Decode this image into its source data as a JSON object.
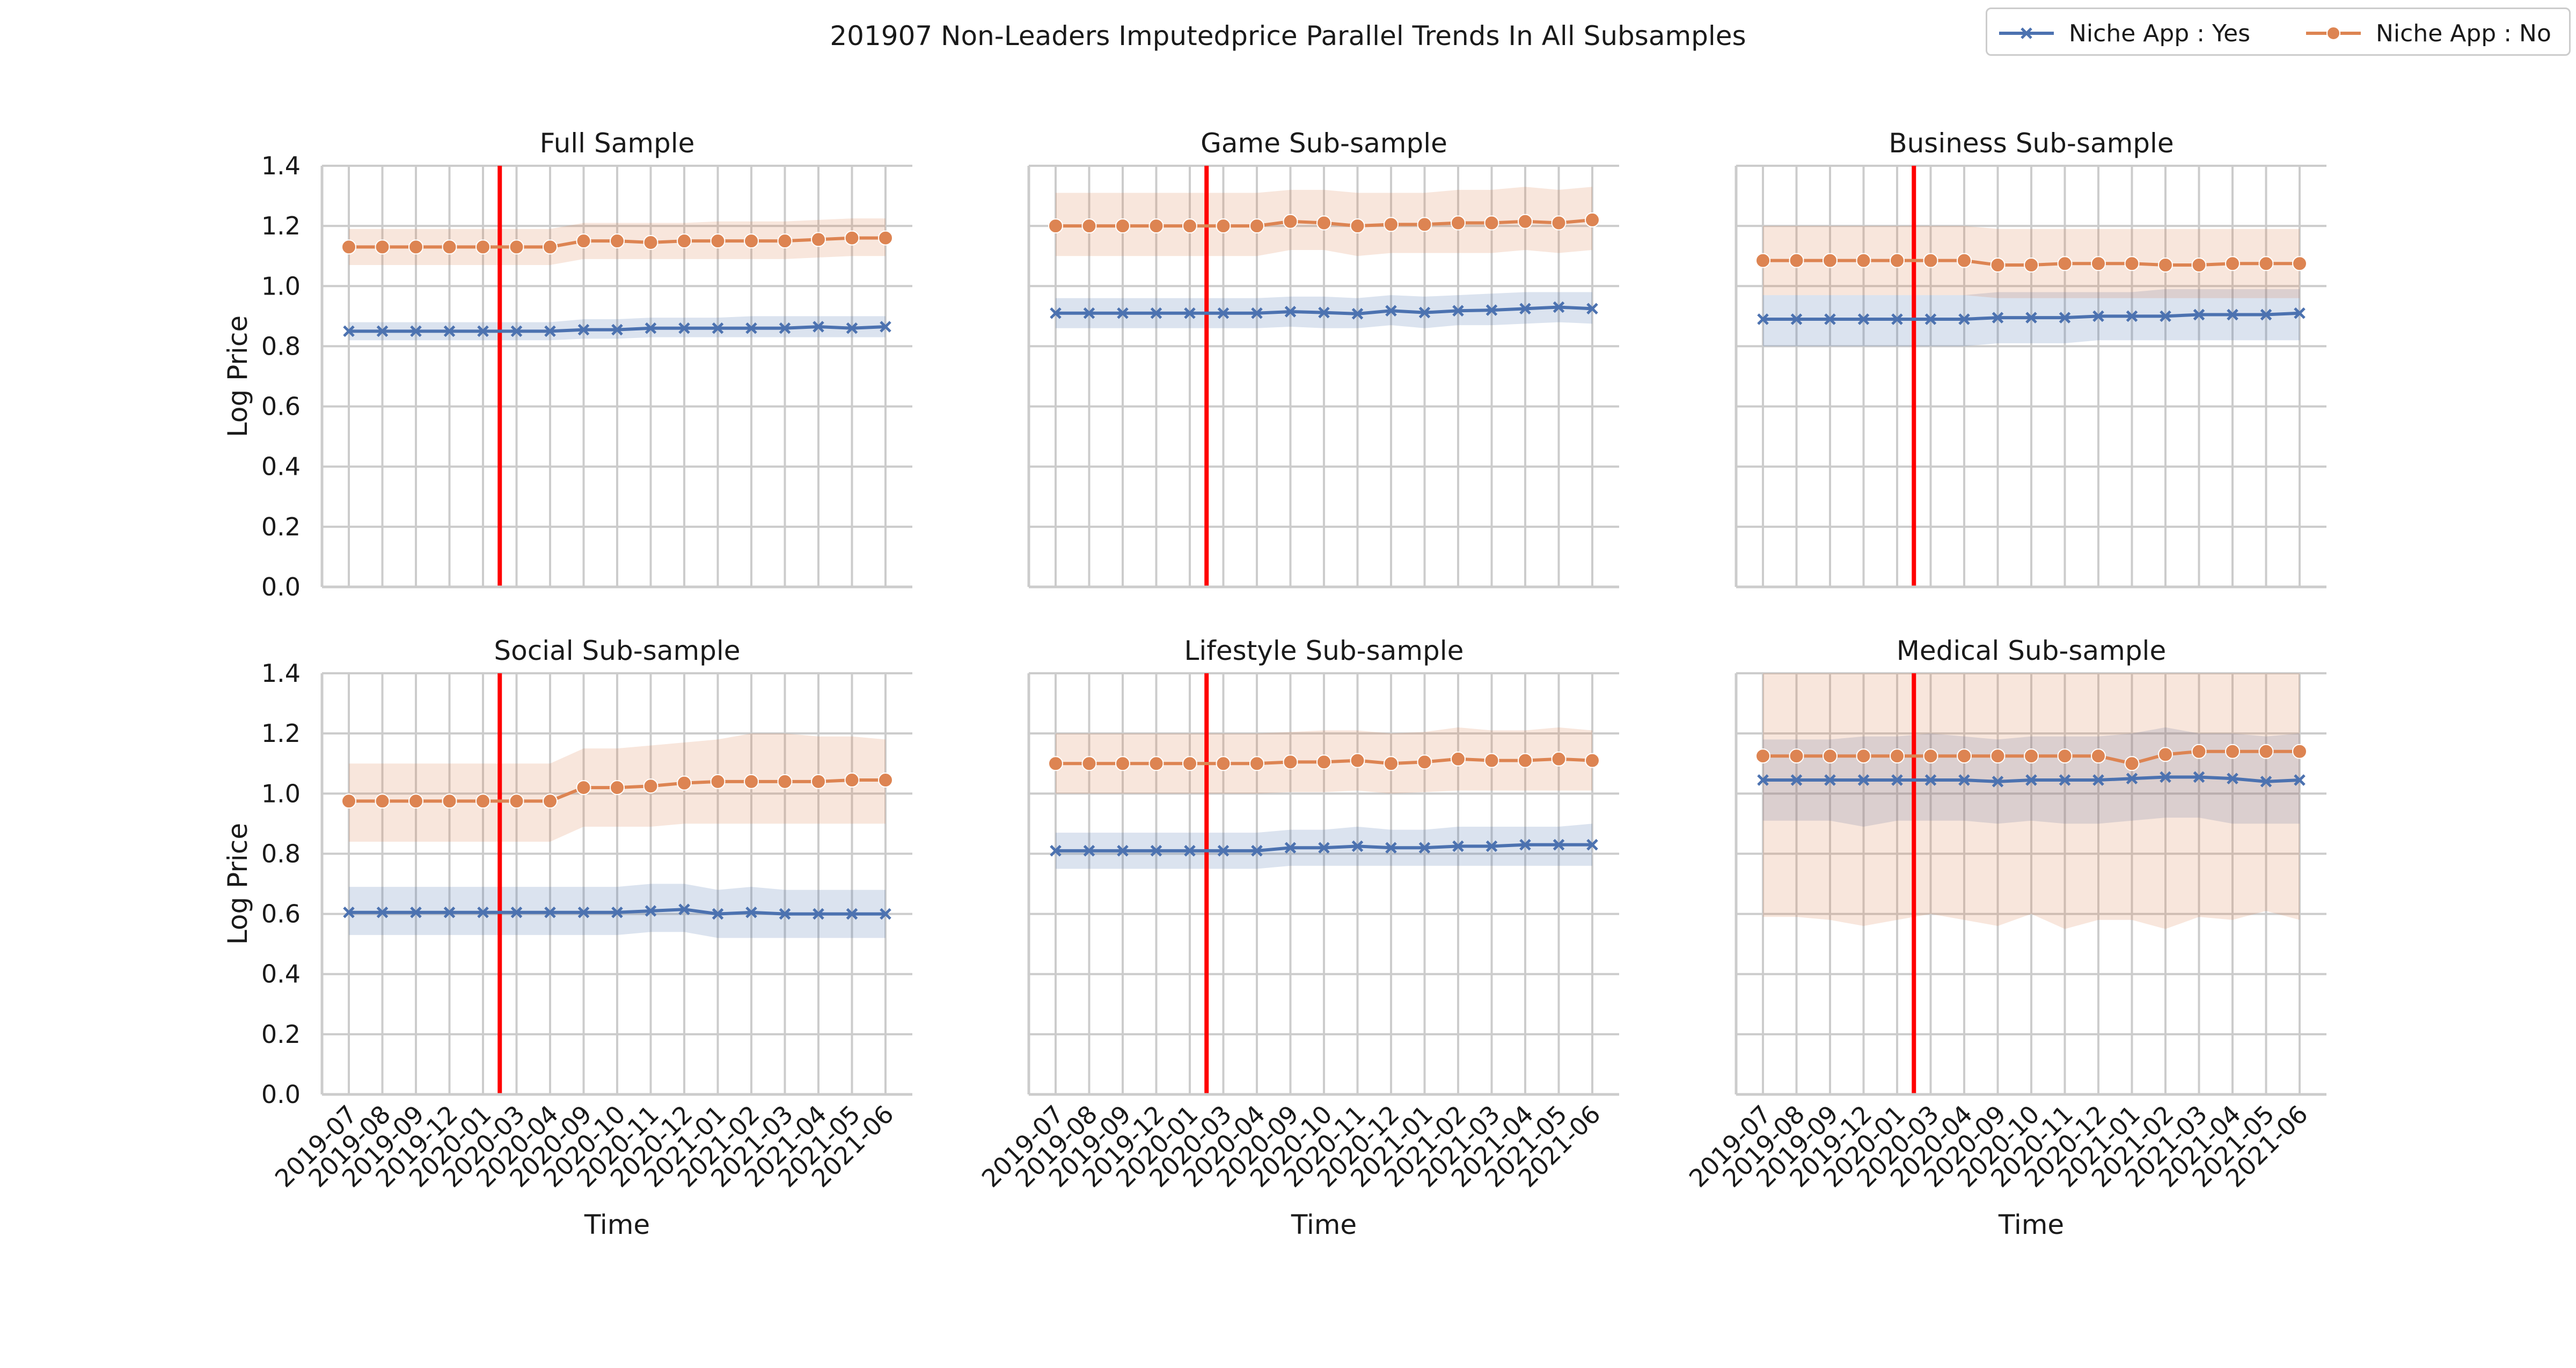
{
  "figure": {
    "title": "201907 Non-Leaders Imputedprice Parallel Trends In All Subsamples"
  },
  "legend": {
    "items": [
      {
        "label": "Niche App : Yes",
        "color": "#4c72b0",
        "marker": "x-marker-icon"
      },
      {
        "label": "Niche App : No",
        "color": "#dd8452",
        "marker": "circle-marker-icon"
      }
    ]
  },
  "colors": {
    "yes_line": "#4c72b0",
    "no_line": "#dd8452",
    "treatment_line": "#ff0000",
    "grid": "#cccccc"
  },
  "chart_data": [
    {
      "type": "line",
      "title": "Full Sample",
      "xlabel": "",
      "ylabel": "Log Price",
      "ylim": [
        0.0,
        1.4
      ],
      "yticks": [
        "0.0",
        "0.2",
        "0.4",
        "0.6",
        "0.8",
        "1.0",
        "1.2",
        "1.4"
      ],
      "x": [
        "2019-07",
        "2019-08",
        "2019-09",
        "2019-12",
        "2020-01",
        "2020-03",
        "2020-04",
        "2020-09",
        "2020-10",
        "2020-11",
        "2020-12",
        "2021-01",
        "2021-02",
        "2021-03",
        "2021-04",
        "2021-05",
        "2021-06"
      ],
      "treatment_x": "2020-01",
      "grid": true,
      "series": [
        {
          "name": "Niche App : Yes",
          "values": [
            0.85,
            0.85,
            0.85,
            0.85,
            0.85,
            0.85,
            0.85,
            0.855,
            0.855,
            0.86,
            0.86,
            0.86,
            0.86,
            0.86,
            0.865,
            0.86,
            0.865
          ],
          "lower": [
            0.82,
            0.82,
            0.82,
            0.82,
            0.82,
            0.82,
            0.82,
            0.825,
            0.825,
            0.83,
            0.83,
            0.83,
            0.83,
            0.83,
            0.83,
            0.83,
            0.83
          ],
          "upper": [
            0.88,
            0.88,
            0.88,
            0.88,
            0.88,
            0.88,
            0.88,
            0.89,
            0.89,
            0.895,
            0.895,
            0.895,
            0.9,
            0.9,
            0.9,
            0.9,
            0.9
          ]
        },
        {
          "name": "Niche App : No",
          "values": [
            1.13,
            1.13,
            1.13,
            1.13,
            1.13,
            1.13,
            1.13,
            1.15,
            1.15,
            1.145,
            1.15,
            1.15,
            1.15,
            1.15,
            1.155,
            1.16,
            1.16
          ],
          "lower": [
            1.07,
            1.07,
            1.07,
            1.07,
            1.07,
            1.07,
            1.07,
            1.09,
            1.09,
            1.09,
            1.09,
            1.09,
            1.09,
            1.09,
            1.095,
            1.1,
            1.1
          ],
          "upper": [
            1.19,
            1.19,
            1.19,
            1.19,
            1.19,
            1.19,
            1.19,
            1.21,
            1.21,
            1.21,
            1.21,
            1.215,
            1.215,
            1.215,
            1.22,
            1.225,
            1.225
          ]
        }
      ]
    },
    {
      "type": "line",
      "title": "Game Sub-sample",
      "xlabel": "",
      "ylabel": "",
      "ylim": [
        0.0,
        1.4
      ],
      "x": [
        "2019-07",
        "2019-08",
        "2019-09",
        "2019-12",
        "2020-01",
        "2020-03",
        "2020-04",
        "2020-09",
        "2020-10",
        "2020-11",
        "2020-12",
        "2021-01",
        "2021-02",
        "2021-03",
        "2021-04",
        "2021-05",
        "2021-06"
      ],
      "treatment_x": "2020-01",
      "grid": true,
      "series": [
        {
          "name": "Niche App : Yes",
          "values": [
            0.91,
            0.91,
            0.91,
            0.91,
            0.91,
            0.91,
            0.91,
            0.915,
            0.912,
            0.908,
            0.918,
            0.912,
            0.918,
            0.92,
            0.925,
            0.93,
            0.925
          ],
          "lower": [
            0.86,
            0.86,
            0.86,
            0.86,
            0.86,
            0.86,
            0.86,
            0.865,
            0.86,
            0.86,
            0.87,
            0.86,
            0.87,
            0.87,
            0.875,
            0.88,
            0.875
          ],
          "upper": [
            0.96,
            0.96,
            0.96,
            0.96,
            0.96,
            0.96,
            0.96,
            0.965,
            0.965,
            0.96,
            0.97,
            0.965,
            0.97,
            0.975,
            0.98,
            0.98,
            0.98
          ]
        },
        {
          "name": "Niche App : No",
          "values": [
            1.2,
            1.2,
            1.2,
            1.2,
            1.2,
            1.2,
            1.2,
            1.215,
            1.21,
            1.2,
            1.205,
            1.205,
            1.21,
            1.21,
            1.215,
            1.21,
            1.22
          ],
          "lower": [
            1.1,
            1.1,
            1.1,
            1.1,
            1.1,
            1.1,
            1.1,
            1.12,
            1.12,
            1.1,
            1.11,
            1.11,
            1.11,
            1.11,
            1.12,
            1.11,
            1.12
          ],
          "upper": [
            1.31,
            1.31,
            1.31,
            1.31,
            1.31,
            1.31,
            1.31,
            1.32,
            1.32,
            1.31,
            1.31,
            1.31,
            1.32,
            1.32,
            1.33,
            1.32,
            1.33
          ]
        }
      ]
    },
    {
      "type": "line",
      "title": "Business Sub-sample",
      "xlabel": "",
      "ylabel": "",
      "ylim": [
        0.0,
        1.4
      ],
      "x": [
        "2019-07",
        "2019-08",
        "2019-09",
        "2019-12",
        "2020-01",
        "2020-03",
        "2020-04",
        "2020-09",
        "2020-10",
        "2020-11",
        "2020-12",
        "2021-01",
        "2021-02",
        "2021-03",
        "2021-04",
        "2021-05",
        "2021-06"
      ],
      "treatment_x": "2020-01",
      "grid": true,
      "series": [
        {
          "name": "Niche App : Yes",
          "values": [
            0.89,
            0.89,
            0.89,
            0.89,
            0.89,
            0.89,
            0.89,
            0.895,
            0.895,
            0.895,
            0.9,
            0.9,
            0.9,
            0.905,
            0.905,
            0.905,
            0.91
          ],
          "lower": [
            0.8,
            0.8,
            0.8,
            0.8,
            0.8,
            0.8,
            0.8,
            0.81,
            0.81,
            0.81,
            0.82,
            0.82,
            0.82,
            0.82,
            0.82,
            0.82,
            0.82
          ],
          "upper": [
            0.97,
            0.97,
            0.97,
            0.97,
            0.97,
            0.97,
            0.97,
            0.98,
            0.98,
            0.98,
            0.98,
            0.98,
            0.99,
            0.99,
            0.99,
            0.99,
            0.99
          ]
        },
        {
          "name": "Niche App : No",
          "values": [
            1.085,
            1.085,
            1.085,
            1.085,
            1.085,
            1.085,
            1.085,
            1.07,
            1.07,
            1.075,
            1.075,
            1.075,
            1.07,
            1.07,
            1.075,
            1.075,
            1.075
          ],
          "lower": [
            0.97,
            0.97,
            0.97,
            0.97,
            0.97,
            0.97,
            0.97,
            0.96,
            0.96,
            0.96,
            0.96,
            0.96,
            0.96,
            0.96,
            0.96,
            0.96,
            0.96
          ],
          "upper": [
            1.2,
            1.2,
            1.2,
            1.2,
            1.2,
            1.2,
            1.2,
            1.19,
            1.19,
            1.19,
            1.19,
            1.19,
            1.19,
            1.19,
            1.19,
            1.19,
            1.19
          ]
        }
      ]
    },
    {
      "type": "line",
      "title": "Social Sub-sample",
      "xlabel": "Time",
      "ylabel": "Log Price",
      "ylim": [
        0.0,
        1.4
      ],
      "yticks": [
        "0.0",
        "0.2",
        "0.4",
        "0.6",
        "0.8",
        "1.0",
        "1.2",
        "1.4"
      ],
      "x": [
        "2019-07",
        "2019-08",
        "2019-09",
        "2019-12",
        "2020-01",
        "2020-03",
        "2020-04",
        "2020-09",
        "2020-10",
        "2020-11",
        "2020-12",
        "2021-01",
        "2021-02",
        "2021-03",
        "2021-04",
        "2021-05",
        "2021-06"
      ],
      "treatment_x": "2020-01",
      "grid": true,
      "series": [
        {
          "name": "Niche App : Yes",
          "values": [
            0.605,
            0.605,
            0.605,
            0.605,
            0.605,
            0.605,
            0.605,
            0.605,
            0.605,
            0.61,
            0.615,
            0.6,
            0.605,
            0.6,
            0.6,
            0.6,
            0.6
          ],
          "lower": [
            0.53,
            0.53,
            0.53,
            0.53,
            0.53,
            0.53,
            0.53,
            0.53,
            0.53,
            0.54,
            0.54,
            0.52,
            0.52,
            0.52,
            0.52,
            0.52,
            0.52
          ],
          "upper": [
            0.69,
            0.69,
            0.69,
            0.69,
            0.69,
            0.69,
            0.69,
            0.69,
            0.69,
            0.7,
            0.7,
            0.68,
            0.69,
            0.68,
            0.68,
            0.68,
            0.68
          ]
        },
        {
          "name": "Niche App : No",
          "values": [
            0.975,
            0.975,
            0.975,
            0.975,
            0.975,
            0.975,
            0.975,
            1.02,
            1.02,
            1.025,
            1.035,
            1.04,
            1.04,
            1.04,
            1.04,
            1.045,
            1.045
          ],
          "lower": [
            0.84,
            0.84,
            0.84,
            0.84,
            0.84,
            0.84,
            0.84,
            0.89,
            0.89,
            0.89,
            0.9,
            0.9,
            0.9,
            0.9,
            0.9,
            0.9,
            0.9
          ],
          "upper": [
            1.1,
            1.1,
            1.1,
            1.1,
            1.1,
            1.1,
            1.1,
            1.15,
            1.15,
            1.16,
            1.17,
            1.18,
            1.2,
            1.2,
            1.19,
            1.19,
            1.18
          ]
        }
      ]
    },
    {
      "type": "line",
      "title": "Lifestyle Sub-sample",
      "xlabel": "Time",
      "ylabel": "",
      "ylim": [
        0.0,
        1.4
      ],
      "x": [
        "2019-07",
        "2019-08",
        "2019-09",
        "2019-12",
        "2020-01",
        "2020-03",
        "2020-04",
        "2020-09",
        "2020-10",
        "2020-11",
        "2020-12",
        "2021-01",
        "2021-02",
        "2021-03",
        "2021-04",
        "2021-05",
        "2021-06"
      ],
      "treatment_x": "2020-01",
      "grid": true,
      "series": [
        {
          "name": "Niche App : Yes",
          "values": [
            0.81,
            0.81,
            0.81,
            0.81,
            0.81,
            0.81,
            0.81,
            0.82,
            0.82,
            0.825,
            0.82,
            0.82,
            0.825,
            0.825,
            0.83,
            0.83,
            0.83
          ],
          "lower": [
            0.75,
            0.75,
            0.75,
            0.75,
            0.75,
            0.75,
            0.75,
            0.76,
            0.76,
            0.76,
            0.76,
            0.76,
            0.76,
            0.76,
            0.76,
            0.76,
            0.76
          ],
          "upper": [
            0.87,
            0.87,
            0.87,
            0.87,
            0.87,
            0.87,
            0.87,
            0.88,
            0.88,
            0.89,
            0.88,
            0.88,
            0.89,
            0.89,
            0.89,
            0.89,
            0.9
          ]
        },
        {
          "name": "Niche App : No",
          "values": [
            1.1,
            1.1,
            1.1,
            1.1,
            1.1,
            1.1,
            1.1,
            1.105,
            1.105,
            1.11,
            1.1,
            1.105,
            1.115,
            1.11,
            1.11,
            1.115,
            1.11
          ],
          "lower": [
            1.0,
            1.0,
            1.0,
            1.0,
            1.0,
            1.0,
            1.0,
            1.005,
            1.005,
            1.01,
            1.0,
            1.005,
            1.01,
            1.01,
            1.01,
            1.01,
            1.01
          ],
          "upper": [
            1.2,
            1.2,
            1.2,
            1.2,
            1.2,
            1.2,
            1.2,
            1.205,
            1.21,
            1.21,
            1.2,
            1.205,
            1.22,
            1.21,
            1.21,
            1.22,
            1.21
          ]
        }
      ]
    },
    {
      "type": "line",
      "title": "Medical Sub-sample",
      "xlabel": "Time",
      "ylabel": "",
      "ylim": [
        0.0,
        1.4
      ],
      "x": [
        "2019-07",
        "2019-08",
        "2019-09",
        "2019-12",
        "2020-01",
        "2020-03",
        "2020-04",
        "2020-09",
        "2020-10",
        "2020-11",
        "2020-12",
        "2021-01",
        "2021-02",
        "2021-03",
        "2021-04",
        "2021-05",
        "2021-06"
      ],
      "treatment_x": "2020-01",
      "grid": true,
      "series": [
        {
          "name": "Niche App : Yes",
          "values": [
            1.045,
            1.045,
            1.045,
            1.045,
            1.045,
            1.045,
            1.045,
            1.04,
            1.045,
            1.045,
            1.045,
            1.05,
            1.055,
            1.055,
            1.05,
            1.04,
            1.045
          ],
          "lower": [
            0.91,
            0.91,
            0.91,
            0.89,
            0.91,
            0.91,
            0.91,
            0.9,
            0.91,
            0.9,
            0.9,
            0.91,
            0.92,
            0.92,
            0.9,
            0.9,
            0.9
          ],
          "upper": [
            1.18,
            1.18,
            1.18,
            1.19,
            1.19,
            1.2,
            1.19,
            1.18,
            1.19,
            1.19,
            1.19,
            1.2,
            1.22,
            1.2,
            1.2,
            1.19,
            1.2
          ]
        },
        {
          "name": "Niche App : No",
          "values": [
            1.125,
            1.125,
            1.125,
            1.125,
            1.125,
            1.125,
            1.125,
            1.125,
            1.125,
            1.125,
            1.125,
            1.1,
            1.13,
            1.14,
            1.14,
            1.14,
            1.14
          ],
          "lower": [
            0.59,
            0.59,
            0.58,
            0.56,
            0.58,
            0.6,
            0.58,
            0.56,
            0.6,
            0.55,
            0.58,
            0.58,
            0.55,
            0.59,
            0.58,
            0.61,
            0.58
          ],
          "upper": [
            1.4,
            1.4,
            1.4,
            1.4,
            1.4,
            1.4,
            1.4,
            1.4,
            1.4,
            1.4,
            1.4,
            1.4,
            1.4,
            1.4,
            1.4,
            1.4,
            1.4
          ]
        }
      ]
    }
  ]
}
